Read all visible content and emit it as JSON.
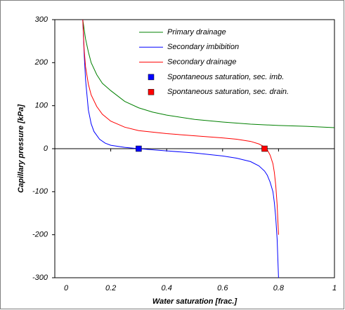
{
  "chart_data": {
    "type": "line",
    "xlabel": "Water saturation [frac.]",
    "ylabel": "Capillary pressure [kPa]",
    "xlim": [
      0,
      1
    ],
    "xticks": [
      0,
      0.2,
      0.4,
      0.6,
      0.8,
      1
    ],
    "ylim": [
      -300,
      300
    ],
    "yticks": [
      -300,
      -200,
      -100,
      0,
      100,
      200,
      300
    ],
    "legend": "upper-right",
    "series": [
      {
        "name": "Primary drainage",
        "type": "line",
        "color": "#008000",
        "x": [
          0.1,
          0.11,
          0.12,
          0.13,
          0.15,
          0.17,
          0.2,
          0.25,
          0.3,
          0.35,
          0.4,
          0.5,
          0.6,
          0.7,
          0.8,
          0.9,
          1.0
        ],
        "values": [
          300,
          255,
          225,
          200,
          172,
          152,
          135,
          110,
          95,
          85,
          78,
          68,
          62,
          57,
          54,
          52,
          49
        ]
      },
      {
        "name": "Secondary imbibition",
        "type": "line",
        "color": "#0000ff",
        "x": [
          0.1,
          0.105,
          0.11,
          0.12,
          0.13,
          0.14,
          0.16,
          0.18,
          0.2,
          0.25,
          0.3,
          0.4,
          0.5,
          0.6,
          0.65,
          0.7,
          0.73,
          0.75,
          0.76,
          0.77,
          0.78,
          0.785,
          0.79,
          0.795,
          0.8
        ],
        "values": [
          300,
          220,
          160,
          90,
          58,
          40,
          22,
          13,
          8,
          3,
          0,
          -5,
          -10,
          -17,
          -22,
          -30,
          -40,
          -52,
          -62,
          -78,
          -100,
          -125,
          -160,
          -210,
          -300
        ]
      },
      {
        "name": "Secondary drainage",
        "type": "line",
        "color": "#ff0000",
        "x": [
          0.1,
          0.105,
          0.11,
          0.12,
          0.13,
          0.15,
          0.17,
          0.2,
          0.25,
          0.3,
          0.4,
          0.5,
          0.6,
          0.65,
          0.7,
          0.73,
          0.75,
          0.76,
          0.77,
          0.78,
          0.785,
          0.79,
          0.795,
          0.8
        ],
        "values": [
          300,
          230,
          190,
          150,
          125,
          98,
          80,
          64,
          50,
          42,
          35,
          30,
          25,
          22,
          17,
          11,
          4,
          -3,
          -15,
          -35,
          -55,
          -85,
          -130,
          -200
        ]
      },
      {
        "name": "Spontaneous saturation, sec. imb.",
        "type": "scatter",
        "color": "#0000ff",
        "x": [
          0.3
        ],
        "values": [
          0
        ]
      },
      {
        "name": "Spontaneous  saturation, sec. drain.",
        "type": "scatter",
        "color": "#ff0000",
        "x": [
          0.75
        ],
        "values": [
          0
        ]
      }
    ]
  }
}
